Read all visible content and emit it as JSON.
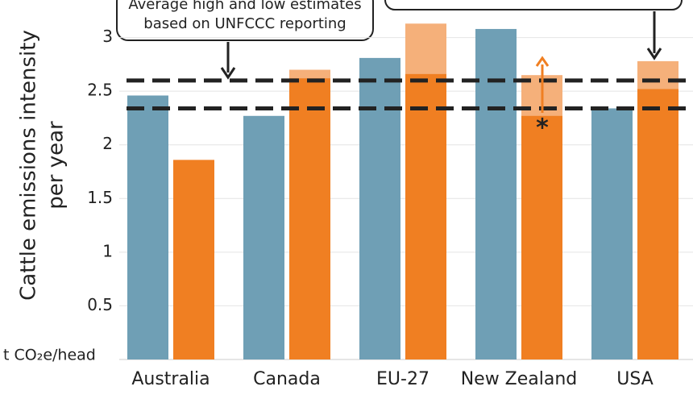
{
  "chart_data": {
    "type": "bar",
    "y_label": [
      "Cattle emissions intensity",
      "per year"
    ],
    "y_unit": "t CO₂e/head",
    "categories": [
      "Australia",
      "Canada",
      "EU-27",
      "New Zealand",
      "USA"
    ],
    "series": [
      {
        "color": "#6f9fb5",
        "values": [
          2.46,
          2.27,
          2.81,
          3.08,
          2.34
        ]
      },
      {
        "color": "#f5b07a",
        "values": [
          null,
          2.7,
          3.13,
          2.65,
          2.78
        ]
      },
      {
        "color": "#f07f22",
        "values": [
          1.86,
          2.62,
          2.66,
          2.27,
          2.52
        ]
      }
    ],
    "reference_lines": [
      2.6,
      2.34
    ],
    "callout": [
      "Average high and low estimates",
      "based on UNFCCC reporting"
    ],
    "asterisk": "*",
    "ylim": [
      0,
      3.35
    ],
    "yticks": [
      0.5,
      1.0,
      1.5,
      2.0,
      2.5,
      3.0
    ],
    "grid": true
  }
}
